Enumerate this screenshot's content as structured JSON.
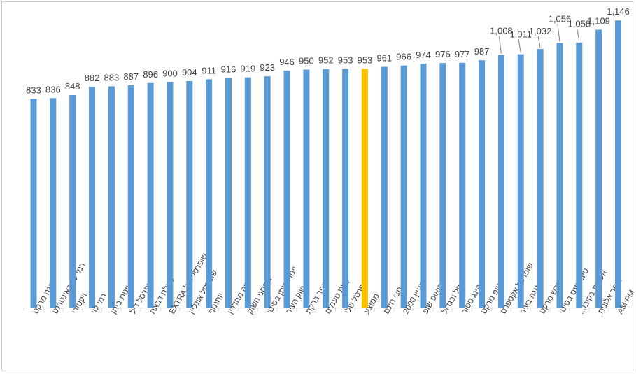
{
  "chart_data": {
    "type": "bar",
    "title": "",
    "xlabel": "",
    "ylabel": "",
    "ylim": [
      0,
      1180
    ],
    "grid": false,
    "legend": "none",
    "colors": {
      "default": "#5b9bd5",
      "highlight": "#ffc000"
    },
    "categories": [
      "מגה מרקט",
      "רמי לוי באינטרנט",
      "ויקטורי",
      "רמי לוי",
      "יינות ביתן",
      "שופרסל דיל",
      "סאלח דבאח",
      "שופרסל דיל EXTRA",
      "שופרסל אונליין",
      "יוחננוף",
      "שוק מהדרין",
      "מחסני השוק",
      "יינות ביתן בסיטי",
      "שוק העיר",
      "סופר ברקת",
      "קשת טעמים",
      "שופרסל שלי",
      "ממוצע",
      "חצי חינם",
      "מעיין 2000",
      "קואופ שופ",
      "זול ובגדול",
      "קינג סטור",
      "סטופ מרקט",
      "שופרסל אקספרס",
      "מגה בעיר",
      "פרש מרקט",
      "טיב טעם בסיטי",
      "אלונית בקיבו...",
      "סופר אלונית",
      "AM:PM"
    ],
    "values": [
      833,
      836,
      848,
      882,
      883,
      887,
      896,
      900,
      904,
      911,
      916,
      919,
      923,
      946,
      950,
      952,
      953,
      953,
      961,
      966,
      974,
      976,
      977,
      987,
      1008,
      1011,
      1032,
      1056,
      1058,
      1109,
      1146
    ],
    "value_labels": [
      "833",
      "836",
      "848",
      "882",
      "883",
      "887",
      "896",
      "900",
      "904",
      "911",
      "916",
      "919",
      "923",
      "946",
      "950",
      "952",
      "953",
      "953",
      "961",
      "966",
      "974",
      "976",
      "977",
      "987",
      "1,008",
      "1,011",
      "1,032",
      "1,056",
      "1,058",
      "1,109",
      "1,146"
    ],
    "highlight_index": 17
  }
}
